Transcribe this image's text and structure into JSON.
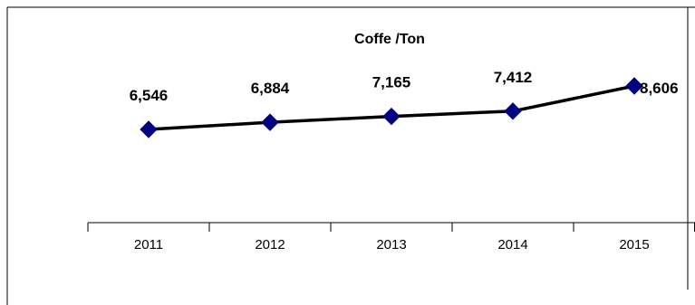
{
  "chart_data": {
    "type": "line",
    "title": "Coffe /Ton",
    "categories": [
      "2011",
      "2012",
      "2013",
      "2014",
      "2015"
    ],
    "series": [
      {
        "values": [
          6546,
          6884,
          7165,
          7412,
          8606
        ],
        "labels": [
          "6,546",
          "6,884",
          "7,165",
          "7,412",
          "8,606"
        ],
        "color": "#000000",
        "marker": "diamond",
        "marker_color": "#000080"
      }
    ],
    "xlabel": "",
    "ylabel": "",
    "grid": false,
    "legend": "none"
  }
}
